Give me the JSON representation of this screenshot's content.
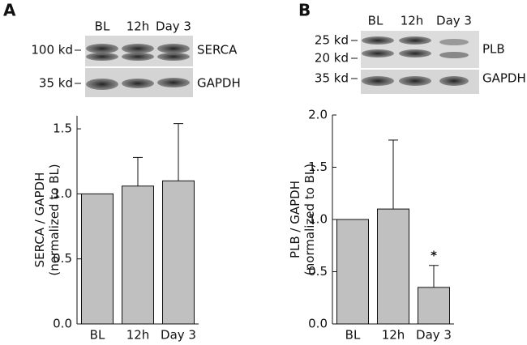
{
  "chart_data": [
    {
      "type": "bar",
      "panel": "A",
      "blot": {
        "lanes": [
          "BL",
          "12h",
          "Day 3"
        ],
        "bands": [
          {
            "markers": [
              "100 kd"
            ],
            "protein": "SERCA"
          },
          {
            "markers": [
              "35 kd"
            ],
            "protein": "GAPDH"
          }
        ]
      },
      "y_label": [
        "SERCA / GAPDH",
        "(normalized to BL)"
      ],
      "categories": [
        "BL",
        "12h",
        "Day 3"
      ],
      "values": [
        1.0,
        1.06,
        1.1
      ],
      "errors": [
        null,
        0.22,
        0.44
      ],
      "color": "#c0c0c0",
      "ylim": [
        0,
        1.6
      ],
      "yticks": [
        {
          "value": 0,
          "label": "0.0"
        },
        0.5,
        {
          "value": 1,
          "label": "1.0"
        },
        1.5
      ]
    },
    {
      "type": "bar",
      "panel": "B",
      "blot": {
        "lanes": [
          "BL",
          "12h",
          "Day 3"
        ],
        "bands": [
          {
            "markers": [
              "25 kd",
              "20 kd"
            ],
            "protein": "PLB"
          },
          {
            "markers": [
              "35 kd"
            ],
            "protein": "GAPDH"
          }
        ]
      },
      "y_label": [
        "PLB / GAPDH",
        "(normalized to BL)"
      ],
      "categories": [
        "BL",
        "12h",
        "Day 3"
      ],
      "values": [
        1.0,
        1.1,
        0.35
      ],
      "errors": [
        null,
        0.66,
        0.21
      ],
      "annotation": "*",
      "color": "#c0c0c0",
      "ylim": [
        0,
        2.0
      ],
      "yticks": [
        {
          "value": 0,
          "label": "0.0"
        },
        0.5,
        {
          "value": 1,
          "label": "1.0"
        },
        1.5,
        {
          "value": 2,
          "label": "2.0"
        }
      ]
    }
  ]
}
